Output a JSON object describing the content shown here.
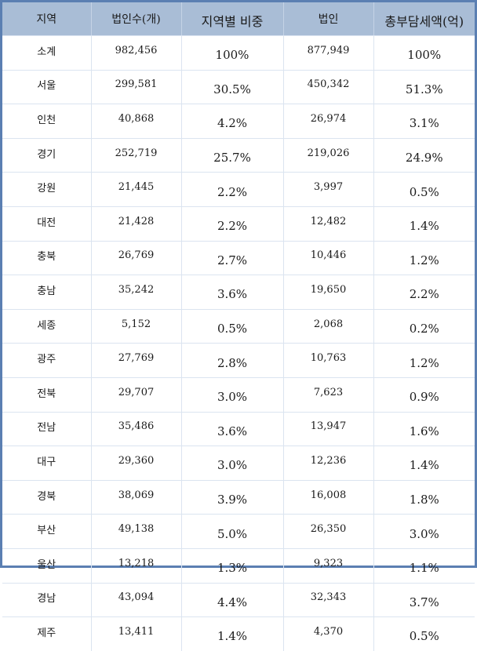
{
  "table": {
    "headers": [
      "지역",
      "법인수(개)",
      "지역별 비중",
      "법인",
      "총부담세액(억)"
    ],
    "rows": [
      {
        "region": "소계",
        "corp_count": "982,456",
        "region_share": "100%",
        "corp": "877,949",
        "tax_share": "100%"
      },
      {
        "region": "서울",
        "corp_count": "299,581",
        "region_share": "30.5%",
        "corp": "450,342",
        "tax_share": "51.3%"
      },
      {
        "region": "인천",
        "corp_count": "40,868",
        "region_share": "4.2%",
        "corp": "26,974",
        "tax_share": "3.1%"
      },
      {
        "region": "경기",
        "corp_count": "252,719",
        "region_share": "25.7%",
        "corp": "219,026",
        "tax_share": "24.9%"
      },
      {
        "region": "강원",
        "corp_count": "21,445",
        "region_share": "2.2%",
        "corp": "3,997",
        "tax_share": "0.5%"
      },
      {
        "region": "대전",
        "corp_count": "21,428",
        "region_share": "2.2%",
        "corp": "12,482",
        "tax_share": "1.4%"
      },
      {
        "region": "충북",
        "corp_count": "26,769",
        "region_share": "2.7%",
        "corp": "10,446",
        "tax_share": "1.2%"
      },
      {
        "region": "충남",
        "corp_count": "35,242",
        "region_share": "3.6%",
        "corp": "19,650",
        "tax_share": "2.2%"
      },
      {
        "region": "세종",
        "corp_count": "5,152",
        "region_share": "0.5%",
        "corp": "2,068",
        "tax_share": "0.2%"
      },
      {
        "region": "광주",
        "corp_count": "27,769",
        "region_share": "2.8%",
        "corp": "10,763",
        "tax_share": "1.2%"
      },
      {
        "region": "전북",
        "corp_count": "29,707",
        "region_share": "3.0%",
        "corp": "7,623",
        "tax_share": "0.9%"
      },
      {
        "region": "전남",
        "corp_count": "35,486",
        "region_share": "3.6%",
        "corp": "13,947",
        "tax_share": "1.6%"
      },
      {
        "region": "대구",
        "corp_count": "29,360",
        "region_share": "3.0%",
        "corp": "12,236",
        "tax_share": "1.4%"
      },
      {
        "region": "경북",
        "corp_count": "38,069",
        "region_share": "3.9%",
        "corp": "16,008",
        "tax_share": "1.8%"
      },
      {
        "region": "부산",
        "corp_count": "49,138",
        "region_share": "5.0%",
        "corp": "26,350",
        "tax_share": "3.0%"
      },
      {
        "region": "울산",
        "corp_count": "13,218",
        "region_share": "1.3%",
        "corp": "9,323",
        "tax_share": "1.1%"
      },
      {
        "region": "경남",
        "corp_count": "43,094",
        "region_share": "4.4%",
        "corp": "32,343",
        "tax_share": "3.7%"
      },
      {
        "region": "제주",
        "corp_count": "13,411",
        "region_share": "1.4%",
        "corp": "4,370",
        "tax_share": "0.5%"
      }
    ]
  },
  "colors": {
    "header_bg": "#a9bdd6",
    "frame_border": "#5b7fb2",
    "grid_line": "#dbe4f0"
  }
}
